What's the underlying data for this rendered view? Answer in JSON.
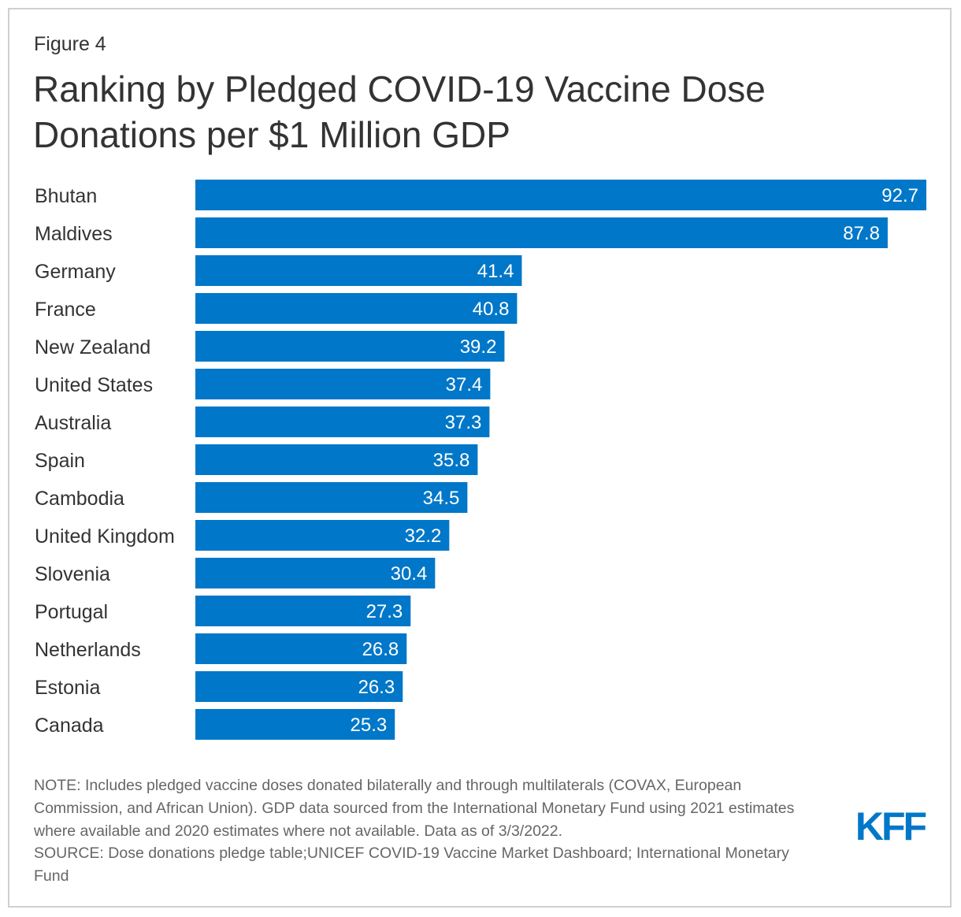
{
  "figure_label": "Figure 4",
  "title_line1": "Ranking by Pledged COVID-19 Vaccine Dose",
  "title_line2": "Donations per $1 Million GDP",
  "chart_data": {
    "type": "bar",
    "orientation": "horizontal",
    "title": "Ranking by Pledged COVID-19 Vaccine Dose Donations per $1 Million GDP",
    "categories": [
      "Bhutan",
      "Maldives",
      "Germany",
      "France",
      "New Zealand",
      "United States",
      "Australia",
      "Spain",
      "Cambodia",
      "United Kingdom",
      "Slovenia",
      "Portugal",
      "Netherlands",
      "Estonia",
      "Canada"
    ],
    "values": [
      92.7,
      87.8,
      41.4,
      40.8,
      39.2,
      37.4,
      37.3,
      35.8,
      34.5,
      32.2,
      30.4,
      27.3,
      26.8,
      26.3,
      25.3
    ],
    "value_labels": [
      "92.7",
      "87.8",
      "41.4",
      "40.8",
      "39.2",
      "37.4",
      "37.3",
      "35.8",
      "34.5",
      "32.2",
      "30.4",
      "27.3",
      "26.8",
      "26.3",
      "25.3"
    ],
    "xlim": [
      0,
      92.7
    ],
    "grid": false,
    "bar_color": "#0077c8",
    "label_color": "#ffffff"
  },
  "note": {
    "note_text": "NOTE: Includes pledged vaccine doses donated bilaterally and through multilaterals (COVAX, European Commission, and African Union). GDP data sourced from the International Monetary Fund using 2021 estimates where available and 2020 estimates where not available. Data as of 3/3/2022.",
    "source_text": "SOURCE: Dose donations pledge table;UNICEF COVID-19 Vaccine Market Dashboard; International Monetary Fund"
  },
  "logo": {
    "text": "KFF",
    "color": "#0077c8"
  }
}
